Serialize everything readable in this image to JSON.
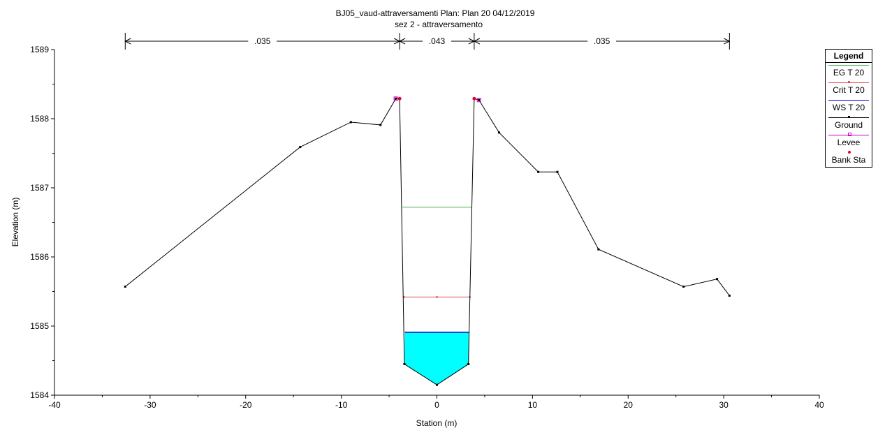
{
  "chart_data": {
    "type": "line",
    "title": "BJ05_vaud-attraversamenti      Plan: Plan 20    04/12/2019",
    "subtitle": "sez 2 - attraversamento",
    "xlabel": "Station (m)",
    "ylabel": "Elevation (m)",
    "xlim": [
      -40,
      40
    ],
    "ylim": [
      1584,
      1589
    ],
    "x_ticks": [
      -40,
      -30,
      -20,
      -10,
      0,
      10,
      20,
      30,
      40
    ],
    "y_ticks": [
      1584,
      1585,
      1586,
      1587,
      1588,
      1589
    ],
    "manning": [
      {
        "label": ".035",
        "from": -32.6,
        "to": -3.9
      },
      {
        "label": ".043",
        "from": -3.9,
        "to": 3.9
      },
      {
        "label": ".035",
        "from": 3.9,
        "to": 30.6
      }
    ],
    "ground": [
      [
        -32.6,
        1585.57
      ],
      [
        -14.3,
        1587.59
      ],
      [
        -9.0,
        1587.95
      ],
      [
        -5.9,
        1587.91
      ],
      [
        -4.3,
        1588.29
      ],
      [
        -3.9,
        1588.29
      ],
      [
        -3.4,
        1584.45
      ],
      [
        0.0,
        1584.15
      ],
      [
        3.3,
        1584.45
      ],
      [
        3.9,
        1588.29
      ],
      [
        4.4,
        1588.27
      ],
      [
        6.5,
        1587.8
      ],
      [
        10.6,
        1587.23
      ],
      [
        12.6,
        1587.23
      ],
      [
        16.9,
        1586.11
      ],
      [
        25.8,
        1585.57
      ],
      [
        29.3,
        1585.68
      ],
      [
        30.6,
        1585.44
      ]
    ],
    "levee": [
      [
        -4.3,
        1588.29
      ],
      [
        4.4,
        1588.27
      ]
    ],
    "bank_sta": [
      [
        -3.9,
        1588.29
      ],
      [
        3.9,
        1588.29
      ]
    ],
    "eg": {
      "elev": 1586.72,
      "from": -3.6,
      "to": 3.6
    },
    "crit": {
      "elev": 1585.42,
      "from": -3.45,
      "to": 3.45
    },
    "ws": {
      "elev": 1584.91,
      "from": -3.35,
      "to": 3.35
    },
    "legend": {
      "title": "Legend",
      "placement": "right",
      "items": [
        {
          "label": "EG T 20",
          "color": "#4caf50",
          "marker": "none"
        },
        {
          "label": "Crit T 20",
          "color": "#e05050",
          "marker": "dot"
        },
        {
          "label": "WS T 20",
          "color": "#0000cc",
          "marker": "none"
        },
        {
          "label": "Ground",
          "color": "#000000",
          "marker": "square"
        },
        {
          "label": "Levee",
          "color": "#cc00cc",
          "marker": "square-open"
        },
        {
          "label": "Bank Sta",
          "color": "#e8002a",
          "marker": "circle"
        }
      ]
    },
    "water_fill_color": "#00ffff"
  }
}
